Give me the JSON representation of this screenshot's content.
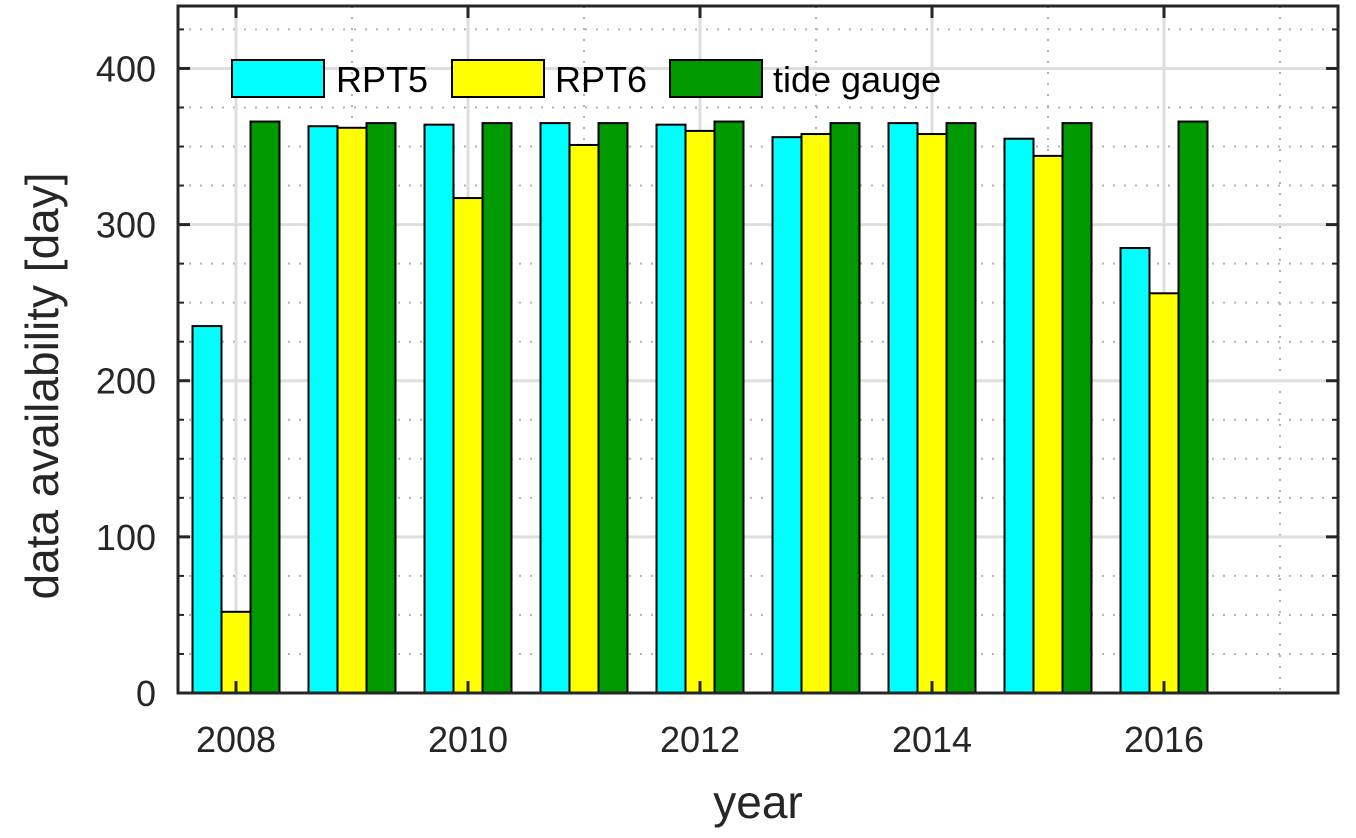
{
  "chart_data": {
    "type": "bar",
    "xlabel": "year",
    "ylabel": "data availability [day]",
    "categories": [
      "2008",
      "2009",
      "2010",
      "2011",
      "2012",
      "2013",
      "2014",
      "2015",
      "2016"
    ],
    "x_ticks": [
      "2008",
      "2010",
      "2012",
      "2014",
      "2016"
    ],
    "y_ticks": [
      "0",
      "100",
      "200",
      "300",
      "400"
    ],
    "ylim": [
      0,
      440
    ],
    "xlim": [
      2007.5,
      2017.5
    ],
    "grid": true,
    "minor_grid": true,
    "legend_position": "top-left",
    "series": [
      {
        "name": "RPT5",
        "color": "#00FFFF",
        "values": [
          235,
          363,
          364,
          365,
          364,
          356,
          365,
          355,
          285
        ]
      },
      {
        "name": "RPT6",
        "color": "#FFFF00",
        "values": [
          52,
          362,
          317,
          351,
          360,
          358,
          358,
          344,
          256
        ]
      },
      {
        "name": "tide gauge",
        "color": "#009900",
        "values": [
          366,
          365,
          365,
          365,
          366,
          365,
          365,
          365,
          366
        ]
      }
    ]
  }
}
